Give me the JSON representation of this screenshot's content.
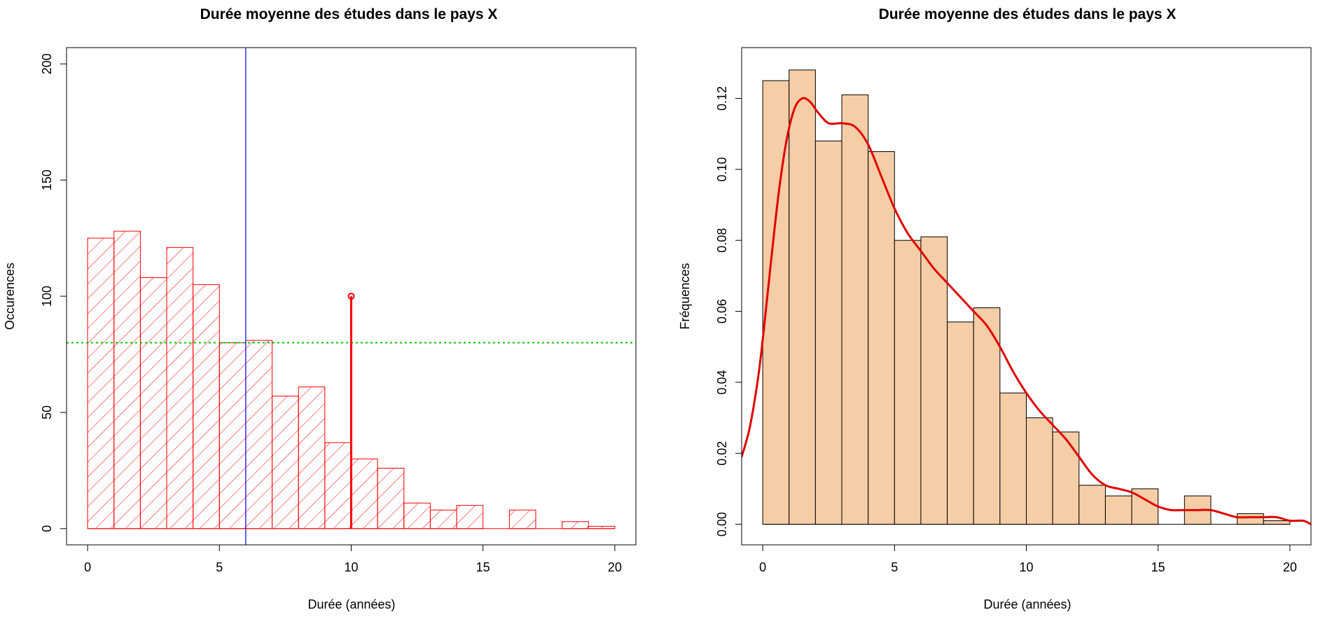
{
  "chart_data": [
    {
      "type": "bar",
      "title": "Durée moyenne des études dans le pays X",
      "xlabel": "Durée (années)",
      "ylabel": "Occurences",
      "xlim": [
        -0.8,
        20.8
      ],
      "ylim": [
        -7,
        207
      ],
      "xticks": [
        0,
        5,
        10,
        15,
        20
      ],
      "yticks": [
        0,
        50,
        100,
        150,
        200
      ],
      "bin_width": 1,
      "bin_starts": [
        0,
        1,
        2,
        3,
        4,
        5,
        6,
        7,
        8,
        9,
        10,
        11,
        12,
        13,
        14,
        15,
        16,
        17,
        18,
        19
      ],
      "values": [
        125,
        128,
        108,
        121,
        105,
        80,
        81,
        57,
        61,
        37,
        30,
        26,
        11,
        8,
        10,
        0,
        8,
        0,
        3,
        1
      ],
      "bar_style": "hatched",
      "bar_color": "#ff0000",
      "annotations": {
        "vertical_line_x": 6,
        "vertical_line_color": "#0000ff",
        "horizontal_line_y": 80,
        "horizontal_line_color": "#00cc00",
        "segment": {
          "x": 10,
          "y0": 0,
          "y1": 100,
          "color": "#ff0000"
        }
      },
      "grid": false
    },
    {
      "type": "bar",
      "title": "Durée moyenne des études dans le pays X",
      "xlabel": "Durée (années)",
      "ylabel": "Fréquences",
      "xlim": [
        -0.8,
        20.8
      ],
      "ylim": [
        -0.0058,
        0.1343
      ],
      "xticks": [
        0,
        5,
        10,
        15,
        20
      ],
      "yticks": [
        "0.00",
        "0.02",
        "0.04",
        "0.06",
        "0.08",
        "0.10",
        "0.12"
      ],
      "bin_width": 1,
      "bin_starts": [
        0,
        1,
        2,
        3,
        4,
        5,
        6,
        7,
        8,
        9,
        10,
        11,
        12,
        13,
        14,
        15,
        16,
        17,
        18,
        19
      ],
      "values": [
        0.125,
        0.128,
        0.108,
        0.121,
        0.105,
        0.08,
        0.081,
        0.057,
        0.061,
        0.037,
        0.03,
        0.026,
        0.011,
        0.008,
        0.01,
        0.0,
        0.008,
        0.0,
        0.003,
        0.001
      ],
      "bar_color": "#f5cda7",
      "density_curve": {
        "color": "#e00000",
        "x": [
          -0.8,
          -0.5,
          -0.2,
          0,
          0.3,
          0.6,
          0.9,
          1.2,
          1.5,
          1.8,
          2.1,
          2.5,
          3,
          3.5,
          4,
          4.5,
          5,
          5.5,
          6,
          6.5,
          7,
          7.5,
          8,
          8.5,
          9,
          9.5,
          10,
          10.5,
          11,
          11.5,
          12,
          12.5,
          13,
          13.5,
          14,
          14.5,
          15,
          15.5,
          16,
          16.5,
          17,
          17.5,
          18,
          18.5,
          19,
          19.5,
          20,
          20.5,
          20.8
        ],
        "y": [
          0.019,
          0.027,
          0.04,
          0.052,
          0.073,
          0.093,
          0.108,
          0.117,
          0.12,
          0.119,
          0.116,
          0.113,
          0.113,
          0.112,
          0.107,
          0.098,
          0.089,
          0.082,
          0.077,
          0.072,
          0.068,
          0.064,
          0.06,
          0.056,
          0.05,
          0.043,
          0.037,
          0.032,
          0.028,
          0.024,
          0.019,
          0.014,
          0.011,
          0.01,
          0.009,
          0.007,
          0.005,
          0.004,
          0.004,
          0.004,
          0.004,
          0.003,
          0.002,
          0.002,
          0.002,
          0.002,
          0.001,
          0.001,
          0.0
        ]
      },
      "grid": false
    }
  ]
}
